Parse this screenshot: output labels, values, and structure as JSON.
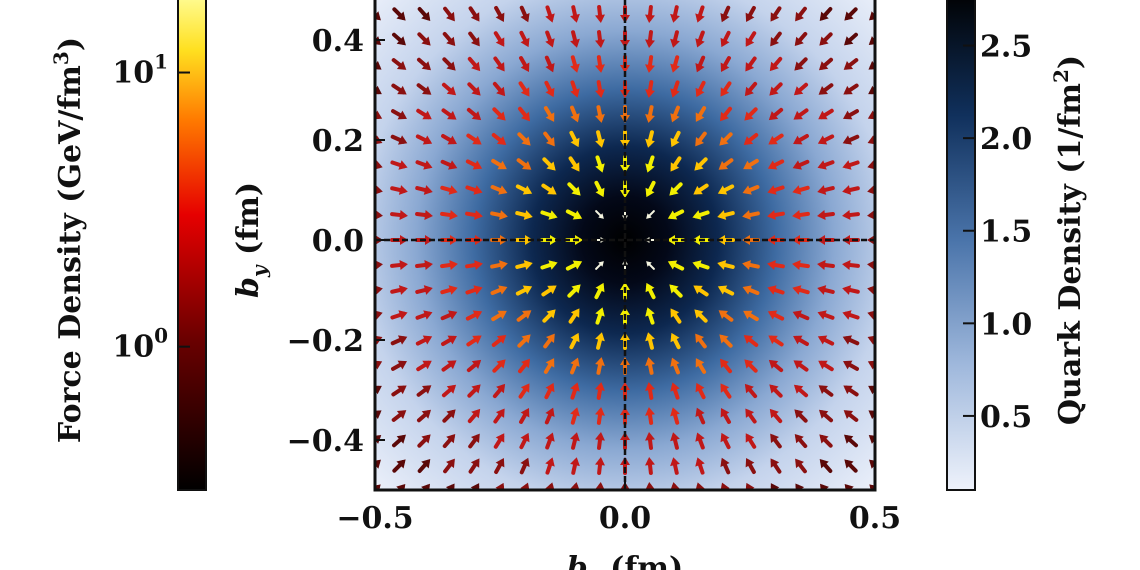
{
  "chart_data": {
    "type": "heatmap",
    "title": "",
    "xlabel": "b_x (fm)",
    "ylabel": "b_y (fm)",
    "xlim": [
      -0.5,
      0.5
    ],
    "ylim": [
      -0.5,
      0.5
    ],
    "x_ticks": [
      -0.5,
      0.0,
      0.5
    ],
    "y_ticks": [
      -0.4,
      -0.2,
      0.0,
      0.2,
      0.4
    ],
    "x_tick_labels": [
      "−0.5",
      "0.0",
      "0.5"
    ],
    "y_tick_labels": [
      "−0.4",
      "−0.2",
      "0.0",
      "0.2",
      "0.4"
    ],
    "background": {
      "quantity": "Quark Density (1/fm²)",
      "profile": "peaked at origin, decreasing radially",
      "peak_value": 2.8,
      "edge_value": 0.1
    },
    "vector_field": {
      "quantity": "Force Density (GeV/fm³)",
      "direction": "pointing toward origin (inward)",
      "grid_spacing_fm": 0.05,
      "magnitude_profile": "largest near origin, decreasing outward"
    },
    "reference_lines": [
      {
        "axis": "x",
        "value": 0.0,
        "style": "dashed"
      },
      {
        "axis": "y",
        "value": 0.0,
        "style": "dashed"
      }
    ],
    "colorbars": [
      {
        "name": "force",
        "label_main": "Force Density (GeV/fm",
        "label_sup": "3",
        "label_end": ")",
        "scale": "log",
        "range": [
          0.3,
          20
        ],
        "tick_labels": [
          {
            "base": "10",
            "exp": "1",
            "value": 10
          },
          {
            "base": "10",
            "exp": "0",
            "value": 1
          }
        ],
        "colormap": "hot",
        "position": "left"
      },
      {
        "name": "density",
        "label_main": "Quark Density (1/fm",
        "label_sup": "2",
        "label_end": ")",
        "scale": "linear",
        "range": [
          0.1,
          2.8
        ],
        "ticks": [
          0.5,
          1.0,
          1.5,
          2.0,
          2.5
        ],
        "tick_labels": [
          "0.5",
          "1.0",
          "1.5",
          "2.0",
          "2.5"
        ],
        "colormap": "blues_r",
        "position": "right"
      }
    ],
    "grid": false,
    "legend": "none"
  }
}
